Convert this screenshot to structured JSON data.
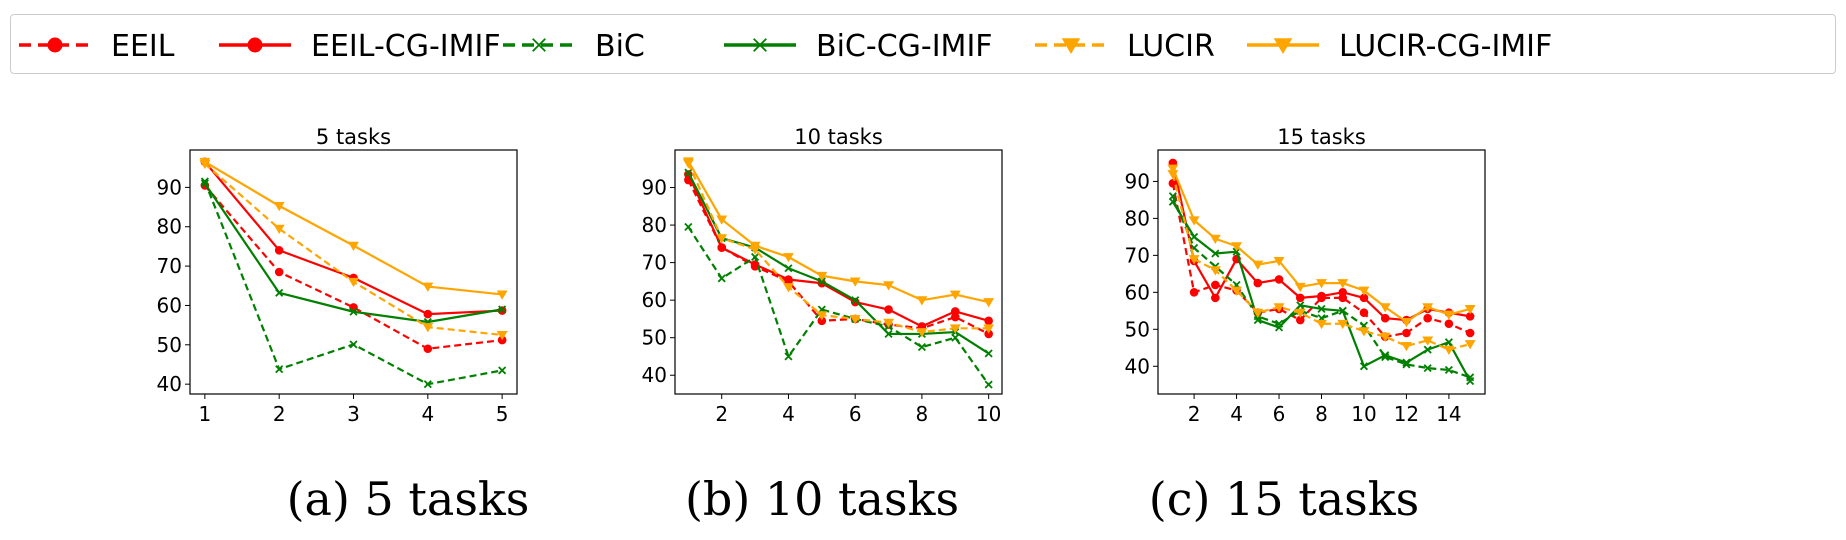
{
  "legend": {
    "items": [
      {
        "label": "EEIL",
        "color": "#ff0000",
        "dashed": true,
        "marker": "circle"
      },
      {
        "label": "EEIL-CG-IMIF",
        "color": "#ff0000",
        "dashed": false,
        "marker": "circle"
      },
      {
        "label": "BiC",
        "color": "#008000",
        "dashed": true,
        "marker": "x"
      },
      {
        "label": "BiC-CG-IMIF",
        "color": "#008000",
        "dashed": false,
        "marker": "x"
      },
      {
        "label": "LUCIR",
        "color": "#ffa500",
        "dashed": true,
        "marker": "triangle"
      },
      {
        "label": "LUCIR-CG-IMIF",
        "color": "#ffa500",
        "dashed": false,
        "marker": "triangle"
      }
    ]
  },
  "chart_data": [
    {
      "type": "line",
      "title": "5 tasks",
      "caption": "(a) 5 tasks",
      "x": [
        1,
        2,
        3,
        4,
        5
      ],
      "xticks": [
        1,
        2,
        3,
        4,
        5
      ],
      "xlim": [
        0.8,
        5.2
      ],
      "yticks": [
        40,
        50,
        60,
        70,
        80,
        90
      ],
      "ylim": [
        37.5,
        99.5
      ],
      "series": [
        {
          "name": "EEIL",
          "values": [
            90.5,
            68.5,
            59.5,
            49,
            51.2
          ]
        },
        {
          "name": "EEIL-CG-IMIF",
          "values": [
            96.5,
            74,
            67,
            57.8,
            58.7
          ]
        },
        {
          "name": "BiC",
          "values": [
            91.5,
            43.8,
            50.1,
            40,
            43.5
          ]
        },
        {
          "name": "BiC-CG-IMIF",
          "values": [
            91,
            63.2,
            58.4,
            55.8,
            59
          ]
        },
        {
          "name": "LUCIR",
          "values": [
            96,
            79.5,
            66,
            54.5,
            52.5
          ]
        },
        {
          "name": "LUCIR-CG-IMIF",
          "values": [
            96.5,
            85.3,
            75.2,
            64.8,
            62.8
          ]
        }
      ]
    },
    {
      "type": "line",
      "title": "10 tasks",
      "caption": "(b) 10 tasks",
      "x": [
        1,
        2,
        3,
        4,
        5,
        6,
        7,
        8,
        9,
        10
      ],
      "xticks": [
        2,
        4,
        6,
        8,
        10
      ],
      "xlim": [
        0.6,
        10.4
      ],
      "yticks": [
        40,
        50,
        60,
        70,
        80,
        90
      ],
      "ylim": [
        35,
        100
      ],
      "series": [
        {
          "name": "EEIL",
          "values": [
            92,
            74,
            69,
            65,
            54.5,
            55,
            53.5,
            52.5,
            55.5,
            51
          ]
        },
        {
          "name": "EEIL-CG-IMIF",
          "values": [
            93.5,
            74,
            69.5,
            65.5,
            64.5,
            59.5,
            57.5,
            53,
            57,
            54.5
          ]
        },
        {
          "name": "BiC",
          "values": [
            79.5,
            65.8,
            71.5,
            45,
            57.5,
            55,
            53,
            47.5,
            50,
            37.5
          ]
        },
        {
          "name": "BiC-CG-IMIF",
          "values": [
            94,
            76.5,
            74,
            68.5,
            65,
            60,
            51,
            51,
            51.5,
            45.8
          ]
        },
        {
          "name": "LUCIR",
          "values": [
            96.5,
            76.5,
            73.5,
            63.5,
            56,
            55,
            54,
            51.5,
            52.5,
            52.5
          ]
        },
        {
          "name": "LUCIR-CG-IMIF",
          "values": [
            97,
            81.5,
            74.5,
            71.5,
            66.5,
            65,
            64,
            60,
            61.5,
            59.5
          ]
        }
      ]
    },
    {
      "type": "line",
      "title": "15 tasks",
      "caption": "(c) 15 tasks",
      "x": [
        1,
        2,
        3,
        4,
        5,
        6,
        7,
        8,
        9,
        10,
        11,
        12,
        13,
        14,
        15
      ],
      "xticks": [
        2,
        4,
        6,
        8,
        10,
        12,
        14
      ],
      "xlim": [
        0.3,
        15.7
      ],
      "yticks": [
        40,
        50,
        60,
        70,
        80,
        90
      ],
      "ylim": [
        32.5,
        98.5
      ],
      "series": [
        {
          "name": "EEIL",
          "values": [
            89.5,
            60,
            62,
            60.5,
            54.5,
            55.5,
            52.5,
            58.5,
            58.5,
            54.5,
            48,
            49,
            53,
            51.5,
            49
          ]
        },
        {
          "name": "EEIL-CG-IMIF",
          "values": [
            95,
            68.5,
            58.5,
            69,
            62.5,
            63.5,
            58.5,
            59,
            60,
            58.5,
            53,
            52.5,
            55.5,
            54.5,
            53.5
          ]
        },
        {
          "name": "BiC",
          "values": [
            86,
            72,
            67,
            62,
            53.5,
            51.5,
            55,
            53,
            55,
            51,
            42.5,
            40.5,
            39.5,
            39,
            37
          ]
        },
        {
          "name": "BiC-CG-IMIF",
          "values": [
            84.5,
            75,
            70.5,
            71,
            52.5,
            50.5,
            56.5,
            55.5,
            55,
            40,
            43,
            41,
            44.5,
            46.5,
            36
          ]
        },
        {
          "name": "LUCIR",
          "values": [
            92,
            69,
            66,
            60.5,
            54.5,
            56,
            54.5,
            51.5,
            51.5,
            49.5,
            48,
            45.5,
            47,
            44.5,
            46
          ]
        },
        {
          "name": "LUCIR-CG-IMIF",
          "values": [
            93.5,
            79.5,
            74.5,
            72.5,
            67.5,
            68.5,
            61.5,
            62.5,
            62.5,
            60.5,
            56,
            52,
            56,
            54,
            55.5
          ]
        }
      ]
    }
  ]
}
